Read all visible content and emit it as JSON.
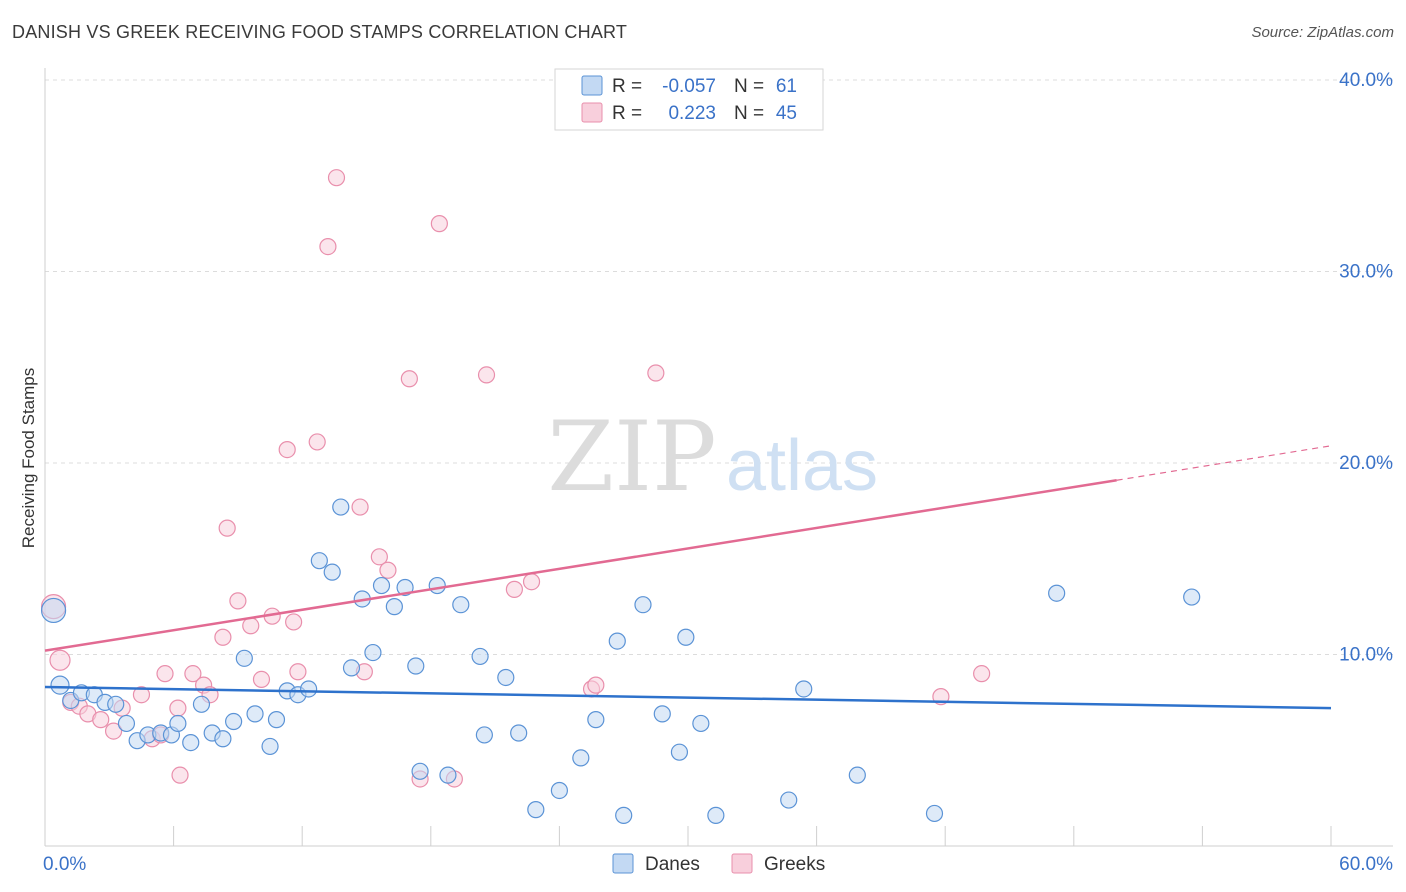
{
  "title": "DANISH VS GREEK RECEIVING FOOD STAMPS CORRELATION CHART",
  "source": "Source: ZipAtlas.com",
  "watermark": {
    "zip": "ZIP",
    "atlas": "atlas"
  },
  "colors": {
    "danes": "#5b93d6",
    "danes_fill": "#c3d9f3",
    "danes_line": "#2e72cc",
    "greeks": "#e98fac",
    "greeks_fill": "#f8cfdc",
    "greeks_line": "#e26a92",
    "axis_text": "#3a72c8",
    "grid": "#dcdcdc"
  },
  "legend_box": {
    "rows": [
      {
        "r_label": "R =",
        "r_value": "-0.057",
        "n_label": "N =",
        "n_value": "61"
      },
      {
        "r_label": "R =",
        "r_value": "0.223",
        "n_label": "N =",
        "n_value": "45"
      }
    ]
  },
  "bottom_legend": {
    "danes": "Danes",
    "greeks": "Greeks"
  },
  "chart_data": {
    "type": "scatter",
    "title": "DANISH VS GREEK RECEIVING FOOD STAMPS CORRELATION CHART",
    "xlabel": "",
    "ylabel": "Receiving Food Stamps",
    "xlim": [
      0,
      60
    ],
    "ylim": [
      0,
      40
    ],
    "x_tick_labels": [
      "0.0%",
      "60.0%"
    ],
    "y_ticks": [
      10,
      20,
      30,
      40
    ],
    "y_tick_labels": [
      "10.0%",
      "20.0%",
      "30.0%",
      "40.0%"
    ],
    "grid": true,
    "series": [
      {
        "name": "Danes",
        "R": -0.057,
        "N": 61,
        "trend": {
          "x": [
            0,
            60
          ],
          "y": [
            8.3,
            7.2
          ]
        },
        "points": [
          [
            0.4,
            12.3,
            12
          ],
          [
            0.7,
            8.4,
            9
          ],
          [
            1.2,
            7.6,
            8
          ],
          [
            1.7,
            8.0,
            8
          ],
          [
            2.3,
            7.9,
            8
          ],
          [
            2.8,
            7.5,
            8
          ],
          [
            3.3,
            7.4,
            8
          ],
          [
            3.8,
            6.4,
            8
          ],
          [
            4.3,
            5.5,
            8
          ],
          [
            4.8,
            5.8,
            8
          ],
          [
            5.4,
            5.9,
            8
          ],
          [
            5.9,
            5.8,
            8
          ],
          [
            6.2,
            6.4,
            8
          ],
          [
            6.8,
            5.4,
            8
          ],
          [
            7.3,
            7.4,
            8
          ],
          [
            7.8,
            5.9,
            8
          ],
          [
            8.3,
            5.6,
            8
          ],
          [
            8.8,
            6.5,
            8
          ],
          [
            9.3,
            9.8,
            8
          ],
          [
            9.8,
            6.9,
            8
          ],
          [
            10.5,
            5.2,
            8
          ],
          [
            10.8,
            6.6,
            8
          ],
          [
            11.3,
            8.1,
            8
          ],
          [
            11.8,
            7.9,
            8
          ],
          [
            12.3,
            8.2,
            8
          ],
          [
            12.8,
            14.9,
            8
          ],
          [
            13.4,
            14.3,
            8
          ],
          [
            13.8,
            17.7,
            8
          ],
          [
            14.3,
            9.3,
            8
          ],
          [
            14.8,
            12.9,
            8
          ],
          [
            15.3,
            10.1,
            8
          ],
          [
            15.7,
            13.6,
            8
          ],
          [
            16.3,
            12.5,
            8
          ],
          [
            16.8,
            13.5,
            8
          ],
          [
            17.3,
            9.4,
            8
          ],
          [
            17.5,
            3.9,
            8
          ],
          [
            18.3,
            13.6,
            8
          ],
          [
            18.8,
            3.7,
            8
          ],
          [
            19.4,
            12.6,
            8
          ],
          [
            20.3,
            9.9,
            8
          ],
          [
            20.5,
            5.8,
            8
          ],
          [
            21.5,
            8.8,
            8
          ],
          [
            22.1,
            5.9,
            8
          ],
          [
            22.9,
            1.9,
            8
          ],
          [
            24.0,
            2.9,
            8
          ],
          [
            25.0,
            4.6,
            8
          ],
          [
            25.7,
            6.6,
            8
          ],
          [
            26.7,
            10.7,
            8
          ],
          [
            27.0,
            1.6,
            8
          ],
          [
            27.9,
            12.6,
            8
          ],
          [
            28.8,
            6.9,
            8
          ],
          [
            29.6,
            4.9,
            8
          ],
          [
            29.9,
            10.9,
            8
          ],
          [
            30.6,
            6.4,
            8
          ],
          [
            31.3,
            1.6,
            8
          ],
          [
            34.7,
            2.4,
            8
          ],
          [
            35.4,
            8.2,
            8
          ],
          [
            37.9,
            3.7,
            8
          ],
          [
            41.5,
            1.7,
            8
          ],
          [
            47.2,
            13.2,
            8
          ],
          [
            53.5,
            13.0,
            8
          ]
        ]
      },
      {
        "name": "Greeks",
        "R": 0.223,
        "N": 45,
        "trend": {
          "x": [
            0,
            50
          ],
          "y": [
            10.2,
            19.1
          ]
        },
        "trend_dashed": {
          "x": [
            50,
            60
          ],
          "y": [
            19.1,
            20.9
          ]
        },
        "points": [
          [
            0.4,
            12.5,
            12
          ],
          [
            0.7,
            9.7,
            10
          ],
          [
            1.2,
            7.5,
            8
          ],
          [
            1.6,
            7.3,
            8
          ],
          [
            2.0,
            6.9,
            8
          ],
          [
            2.6,
            6.6,
            8
          ],
          [
            3.2,
            6.0,
            8
          ],
          [
            3.6,
            7.2,
            8
          ],
          [
            4.5,
            7.9,
            8
          ],
          [
            5.0,
            5.6,
            8
          ],
          [
            5.4,
            5.8,
            8
          ],
          [
            5.6,
            9.0,
            8
          ],
          [
            6.2,
            7.2,
            8
          ],
          [
            6.3,
            3.7,
            8
          ],
          [
            6.9,
            9.0,
            8
          ],
          [
            7.4,
            8.4,
            8
          ],
          [
            7.7,
            7.9,
            8
          ],
          [
            8.3,
            10.9,
            8
          ],
          [
            8.5,
            16.6,
            8
          ],
          [
            9.0,
            12.8,
            8
          ],
          [
            9.6,
            11.5,
            8
          ],
          [
            10.1,
            8.7,
            8
          ],
          [
            10.6,
            12.0,
            8
          ],
          [
            11.3,
            20.7,
            8
          ],
          [
            11.6,
            11.7,
            8
          ],
          [
            11.8,
            9.1,
            8
          ],
          [
            12.7,
            21.1,
            8
          ],
          [
            13.2,
            31.3,
            8
          ],
          [
            13.6,
            34.9,
            8
          ],
          [
            14.7,
            17.7,
            8
          ],
          [
            14.9,
            9.1,
            8
          ],
          [
            15.6,
            15.1,
            8
          ],
          [
            16.0,
            14.4,
            8
          ],
          [
            17.0,
            24.4,
            8
          ],
          [
            17.5,
            3.5,
            8
          ],
          [
            18.4,
            32.5,
            8
          ],
          [
            19.1,
            3.5,
            8
          ],
          [
            20.6,
            24.6,
            8
          ],
          [
            21.9,
            13.4,
            8
          ],
          [
            22.7,
            13.8,
            8
          ],
          [
            25.5,
            8.2,
            8
          ],
          [
            25.7,
            8.4,
            8
          ],
          [
            28.5,
            24.7,
            8
          ],
          [
            41.8,
            7.8,
            8
          ],
          [
            43.7,
            9.0,
            8
          ]
        ]
      }
    ]
  }
}
